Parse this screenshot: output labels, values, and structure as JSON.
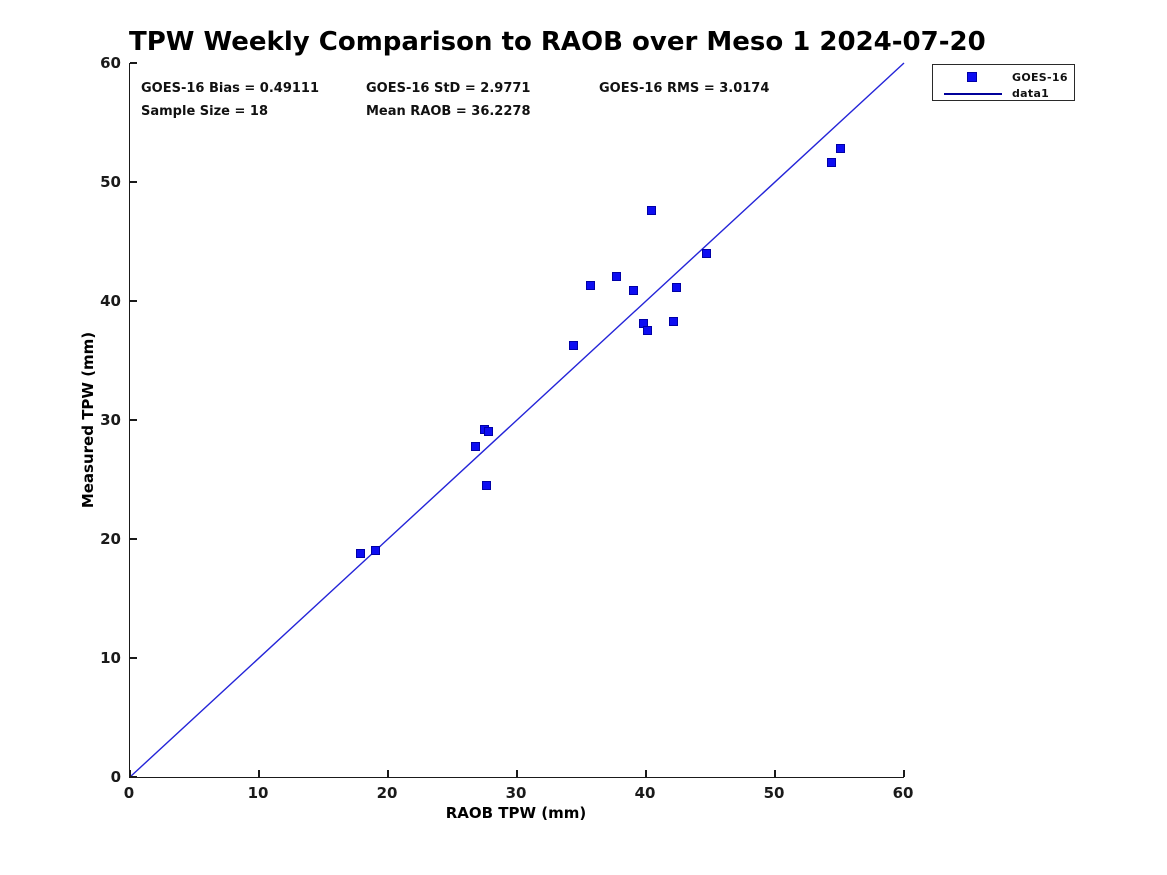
{
  "figure": {
    "title": "TPW Weekly Comparison to RAOB over Meso 1 2024-07-20"
  },
  "stats": {
    "bias": "GOES-16 Bias = 0.49111",
    "std": "GOES-16 StD = 2.9771",
    "rms": "GOES-16 RMS = 3.0174",
    "sample_size": "Sample Size = 18",
    "mean_raob": "Mean RAOB = 36.2278"
  },
  "legend": {
    "items": [
      {
        "label": "GOES-16",
        "symbol": "square-marker"
      },
      {
        "label": "data1",
        "symbol": "line"
      }
    ]
  },
  "colors": {
    "marker_fill": "#0d0df2",
    "marker_edge": "#0000a6",
    "identity_line": "#2424d8",
    "legend_line": "#00009a",
    "axis": "#1a1a1a"
  },
  "chart_data": {
    "type": "scatter",
    "title": "TPW Weekly Comparison to RAOB over Meso 1 2024-07-20",
    "xlabel": "RAOB TPW (mm)",
    "ylabel": "Measured TPW (mm)",
    "xlim": [
      0,
      60
    ],
    "ylim": [
      0,
      60
    ],
    "xticks": [
      0,
      10,
      20,
      30,
      40,
      50,
      60
    ],
    "yticks": [
      0,
      10,
      20,
      30,
      40,
      50,
      60
    ],
    "grid": false,
    "legend_position": "top-right-outside",
    "series": [
      {
        "name": "GOES-16",
        "type": "scatter",
        "marker": "square",
        "points": [
          [
            17.9,
            18.8
          ],
          [
            19.0,
            19.0
          ],
          [
            26.8,
            27.8
          ],
          [
            27.5,
            29.2
          ],
          [
            27.6,
            24.5
          ],
          [
            27.8,
            29.0
          ],
          [
            34.4,
            36.3
          ],
          [
            35.7,
            41.3
          ],
          [
            37.7,
            42.1
          ],
          [
            39.0,
            40.9
          ],
          [
            39.8,
            38.1
          ],
          [
            40.1,
            37.5
          ],
          [
            40.4,
            47.6
          ],
          [
            42.1,
            38.3
          ],
          [
            42.4,
            41.1
          ],
          [
            44.7,
            44.0
          ],
          [
            54.4,
            51.6
          ],
          [
            55.1,
            52.8
          ]
        ]
      },
      {
        "name": "data1",
        "type": "line",
        "points": [
          [
            0,
            0
          ],
          [
            60,
            60
          ]
        ]
      }
    ]
  }
}
